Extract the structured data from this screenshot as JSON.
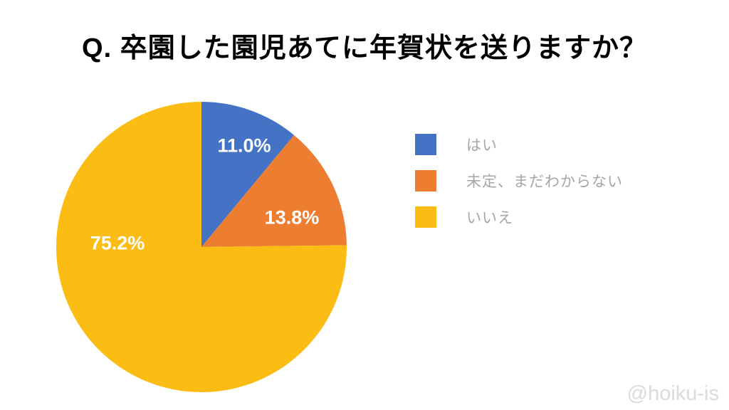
{
  "title": "Q. 卒園した園児あてに年賀状を送りますか？",
  "watermark": "@hoiku-is",
  "colors": {
    "background": "#ffffff",
    "title_text": "#000000",
    "slice_label_text": "#ffffff",
    "legend_text": "#a6a6a6",
    "watermark_text": "#dbdbdb",
    "blue": "#4472c4",
    "orange": "#ed7d31",
    "yellow": "#fbbc13"
  },
  "chart_data": {
    "type": "pie",
    "title": "Q. 卒園した園児あてに年賀状を送りますか？",
    "categories": [
      "はい",
      "未定、まだわからない",
      "いいえ"
    ],
    "values": [
      11.0,
      13.8,
      75.2
    ],
    "labels": [
      "11.0%",
      "13.8%",
      "75.2%"
    ],
    "colors": [
      "#4472c4",
      "#ed7d31",
      "#fbbc13"
    ],
    "start_angle_deg": 0,
    "direction": "clockwise",
    "legend_position": "right",
    "data_labels": "percent-inside-white-bold"
  },
  "legend": {
    "items": [
      {
        "label": "はい",
        "color": "#4472c4"
      },
      {
        "label": "未定、まだわからない",
        "color": "#ed7d31"
      },
      {
        "label": "いいえ",
        "color": "#fbbc13"
      }
    ]
  }
}
